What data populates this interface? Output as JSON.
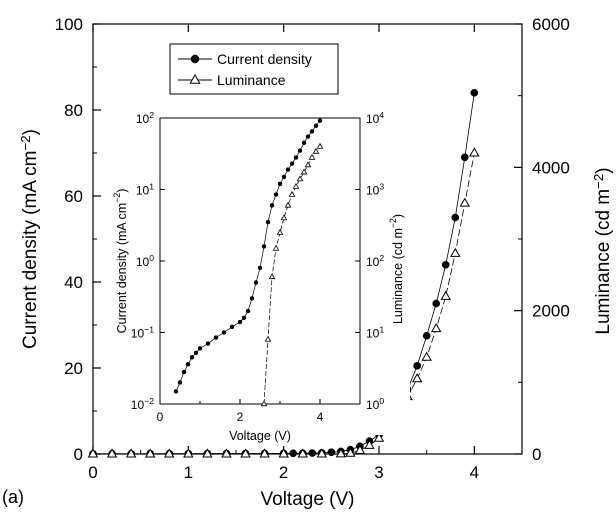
{
  "panel_label": "(a)",
  "chart_data": [
    {
      "type": "line",
      "role": "main",
      "xlabel": "Voltage (V)",
      "ylabel": "Current density (mA cm",
      "ylabel_sup": "−2",
      "ylabel_close": ")",
      "y2label": "Luminance (cd m",
      "y2label_sup": "−2",
      "y2label_close": ")",
      "xlim": [
        0,
        4.5
      ],
      "ylim": [
        0,
        100
      ],
      "y2lim": [
        0,
        6000
      ],
      "xticks": [
        "0",
        "1",
        "2",
        "3",
        "4"
      ],
      "yticks": [
        "0",
        "20",
        "40",
        "60",
        "80",
        "100"
      ],
      "y2ticks": [
        "0",
        "2000",
        "4000",
        "6000"
      ],
      "grid": false,
      "legend_position": "top-left",
      "series": [
        {
          "name": "Current density",
          "axis": "left",
          "marker": "filled-circle",
          "x": [
            0,
            0.2,
            0.4,
            0.6,
            0.8,
            1.0,
            1.2,
            1.4,
            1.6,
            1.8,
            2.0,
            2.1,
            2.2,
            2.3,
            2.4,
            2.5,
            2.6,
            2.7,
            2.8,
            2.9,
            3.0,
            3.1,
            3.2,
            3.3,
            3.4,
            3.5,
            3.6,
            3.7,
            3.8,
            3.9,
            4.0
          ],
          "y": [
            0.05,
            0.05,
            0.06,
            0.07,
            0.08,
            0.09,
            0.1,
            0.11,
            0.12,
            0.13,
            0.15,
            0.16,
            0.18,
            0.22,
            0.28,
            0.4,
            0.6,
            1.0,
            1.8,
            3.0,
            4.5,
            7.0,
            10.5,
            15.0,
            20.5,
            27.5,
            35.0,
            44.0,
            55.0,
            69.0,
            84.0
          ]
        },
        {
          "name": "Luminance",
          "axis": "right",
          "marker": "open-triangle",
          "x": [
            0,
            0.2,
            0.4,
            0.6,
            0.8,
            1.0,
            1.2,
            1.4,
            1.6,
            1.8,
            2.0,
            2.2,
            2.4,
            2.6,
            2.7,
            2.8,
            2.9,
            3.0,
            3.1,
            3.2,
            3.3,
            3.4,
            3.5,
            3.6,
            3.7,
            3.8,
            3.9,
            4.0
          ],
          "y": [
            0,
            0,
            0,
            0,
            0,
            0,
            0,
            0,
            0,
            0,
            0,
            0,
            0,
            1,
            10,
            50,
            120,
            220,
            380,
            560,
            800,
            1050,
            1350,
            1750,
            2200,
            2800,
            3500,
            4200
          ]
        }
      ]
    },
    {
      "type": "line",
      "role": "inset",
      "xlabel": "Voltage (V)",
      "ylabel": "Current density (mA cm",
      "ylabel_sup": "−2",
      "ylabel_close": ")",
      "y2label": "Luminance (cd m",
      "y2label_sup": "−2",
      "y2label_close": ")",
      "xlim": [
        0,
        5
      ],
      "ylim": [
        0.01,
        100
      ],
      "y2lim": [
        1,
        10000
      ],
      "yscale": "log",
      "y2scale": "log",
      "xticks": [
        "0",
        "2",
        "4"
      ],
      "yticks": [
        {
          "base": "10",
          "exp": "−2"
        },
        {
          "base": "10",
          "exp": "−1"
        },
        {
          "base": "10",
          "exp": "0"
        },
        {
          "base": "10",
          "exp": "1"
        },
        {
          "base": "10",
          "exp": "2"
        }
      ],
      "y2ticks": [
        {
          "base": "10",
          "exp": "0"
        },
        {
          "base": "10",
          "exp": "1"
        },
        {
          "base": "10",
          "exp": "2"
        },
        {
          "base": "10",
          "exp": "3"
        },
        {
          "base": "10",
          "exp": "4"
        }
      ],
      "series": [
        {
          "name": "Current density",
          "axis": "left",
          "marker": "filled-circle",
          "x": [
            0.4,
            0.5,
            0.6,
            0.7,
            0.8,
            0.9,
            1.0,
            1.2,
            1.4,
            1.6,
            1.8,
            2.0,
            2.1,
            2.2,
            2.3,
            2.4,
            2.5,
            2.6,
            2.7,
            2.8,
            2.9,
            3.0,
            3.1,
            3.2,
            3.3,
            3.4,
            3.5,
            3.6,
            3.7,
            3.8,
            3.9,
            4.0
          ],
          "y": [
            0.015,
            0.02,
            0.028,
            0.036,
            0.045,
            0.052,
            0.06,
            0.07,
            0.085,
            0.1,
            0.12,
            0.14,
            0.16,
            0.2,
            0.3,
            0.5,
            0.8,
            1.6,
            3.5,
            6.0,
            8.5,
            12.0,
            15.0,
            19.0,
            23.0,
            28.0,
            35.0,
            45.0,
            55.0,
            65.0,
            78.0,
            92.0
          ]
        },
        {
          "name": "Luminance",
          "axis": "right",
          "marker": "open-triangle",
          "x": [
            2.6,
            2.7,
            2.8,
            2.9,
            3.0,
            3.1,
            3.2,
            3.3,
            3.4,
            3.5,
            3.6,
            3.7,
            3.8,
            3.9,
            4.0
          ],
          "y": [
            1,
            8,
            60,
            150,
            250,
            400,
            600,
            850,
            1100,
            1400,
            1750,
            2200,
            2800,
            3400,
            4000
          ]
        }
      ]
    }
  ]
}
